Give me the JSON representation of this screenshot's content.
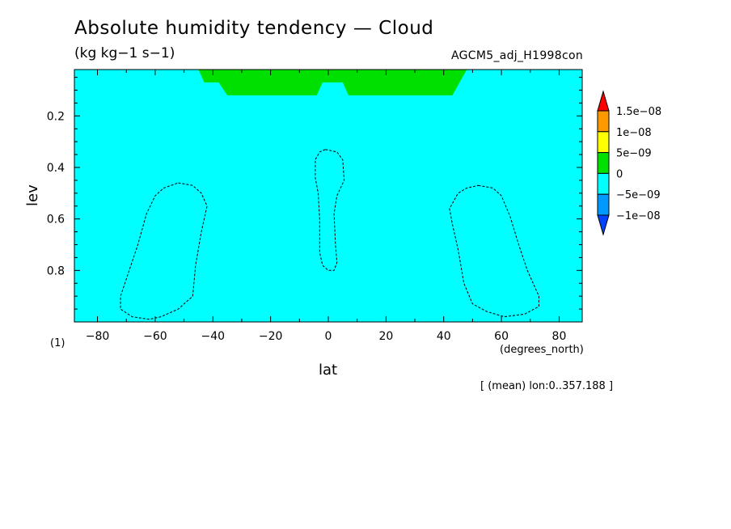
{
  "chart_data": {
    "type": "contour",
    "title": "Absolute humidity tendency — Cloud",
    "units": "(kg kg−1 s−1)",
    "dataset": "AGCM5_adj_H1998con",
    "xlabel": "lat",
    "xunit": "(degrees_north)",
    "ylabel": "lev",
    "axis_note": "(1)",
    "slice_note": "[ (mean) lon:0..357.188 ]",
    "xlim": [
      -88,
      88
    ],
    "ylim": [
      1.0,
      0.02
    ],
    "x_ticks": [
      -80,
      -60,
      -40,
      -20,
      0,
      20,
      40,
      60,
      80
    ],
    "x_tick_labels": [
      "−80",
      "−60",
      "−40",
      "−20",
      "0",
      "20",
      "40",
      "60",
      "80"
    ],
    "y_ticks": [
      0.2,
      0.4,
      0.6,
      0.8
    ],
    "y_tick_labels": [
      "0.2",
      "0.4",
      "0.6",
      "0.8"
    ],
    "background_fill": "#00ffff",
    "positive_region": {
      "fill": "#00e000",
      "outline": [
        [
          -45,
          0.02
        ],
        [
          48,
          0.02
        ],
        [
          43,
          0.12
        ],
        [
          7,
          0.12
        ],
        [
          5,
          0.07
        ],
        [
          -2,
          0.07
        ],
        [
          -4,
          0.12
        ],
        [
          -35,
          0.12
        ],
        [
          -38,
          0.07
        ],
        [
          -43,
          0.07
        ]
      ]
    },
    "contours_dashed": [
      [
        [
          -52,
          0.46
        ],
        [
          -47,
          0.47
        ],
        [
          -44,
          0.5
        ],
        [
          -42,
          0.55
        ],
        [
          -44,
          0.65
        ],
        [
          -46,
          0.78
        ],
        [
          -47,
          0.9
        ],
        [
          -52,
          0.95
        ],
        [
          -58,
          0.98
        ],
        [
          -62,
          0.99
        ],
        [
          -68,
          0.98
        ],
        [
          -72,
          0.95
        ],
        [
          -72,
          0.9
        ],
        [
          -69,
          0.8
        ],
        [
          -66,
          0.7
        ],
        [
          -63,
          0.58
        ],
        [
          -60,
          0.51
        ],
        [
          -57,
          0.48
        ],
        [
          -52,
          0.46
        ]
      ],
      [
        [
          -1,
          0.33
        ],
        [
          3,
          0.34
        ],
        [
          5,
          0.37
        ],
        [
          5.5,
          0.45
        ],
        [
          3,
          0.51
        ],
        [
          2,
          0.58
        ],
        [
          2.5,
          0.7
        ],
        [
          3,
          0.77
        ],
        [
          2,
          0.8
        ],
        [
          0,
          0.8
        ],
        [
          -2,
          0.78
        ],
        [
          -3,
          0.73
        ],
        [
          -3,
          0.6
        ],
        [
          -3.5,
          0.5
        ],
        [
          -4.5,
          0.44
        ],
        [
          -4.5,
          0.37
        ],
        [
          -3,
          0.34
        ],
        [
          -1,
          0.33
        ]
      ],
      [
        [
          52,
          0.47
        ],
        [
          57,
          0.48
        ],
        [
          60,
          0.51
        ],
        [
          63,
          0.59
        ],
        [
          66,
          0.7
        ],
        [
          69,
          0.8
        ],
        [
          73,
          0.9
        ],
        [
          73,
          0.94
        ],
        [
          68,
          0.97
        ],
        [
          61,
          0.98
        ],
        [
          55,
          0.96
        ],
        [
          50,
          0.93
        ],
        [
          47,
          0.85
        ],
        [
          45,
          0.72
        ],
        [
          43,
          0.62
        ],
        [
          42,
          0.56
        ],
        [
          45,
          0.5
        ],
        [
          48,
          0.48
        ],
        [
          52,
          0.47
        ]
      ]
    ],
    "colorbar": {
      "levels": [
        "1.5e−08",
        "1e−08",
        "5e−09",
        "0",
        "−5e−09",
        "−1e−08"
      ],
      "colors": [
        "#ff0000",
        "#ff9900",
        "#ffff00",
        "#00e000",
        "#00ffff",
        "#0099ff",
        "#0044ff"
      ]
    }
  }
}
